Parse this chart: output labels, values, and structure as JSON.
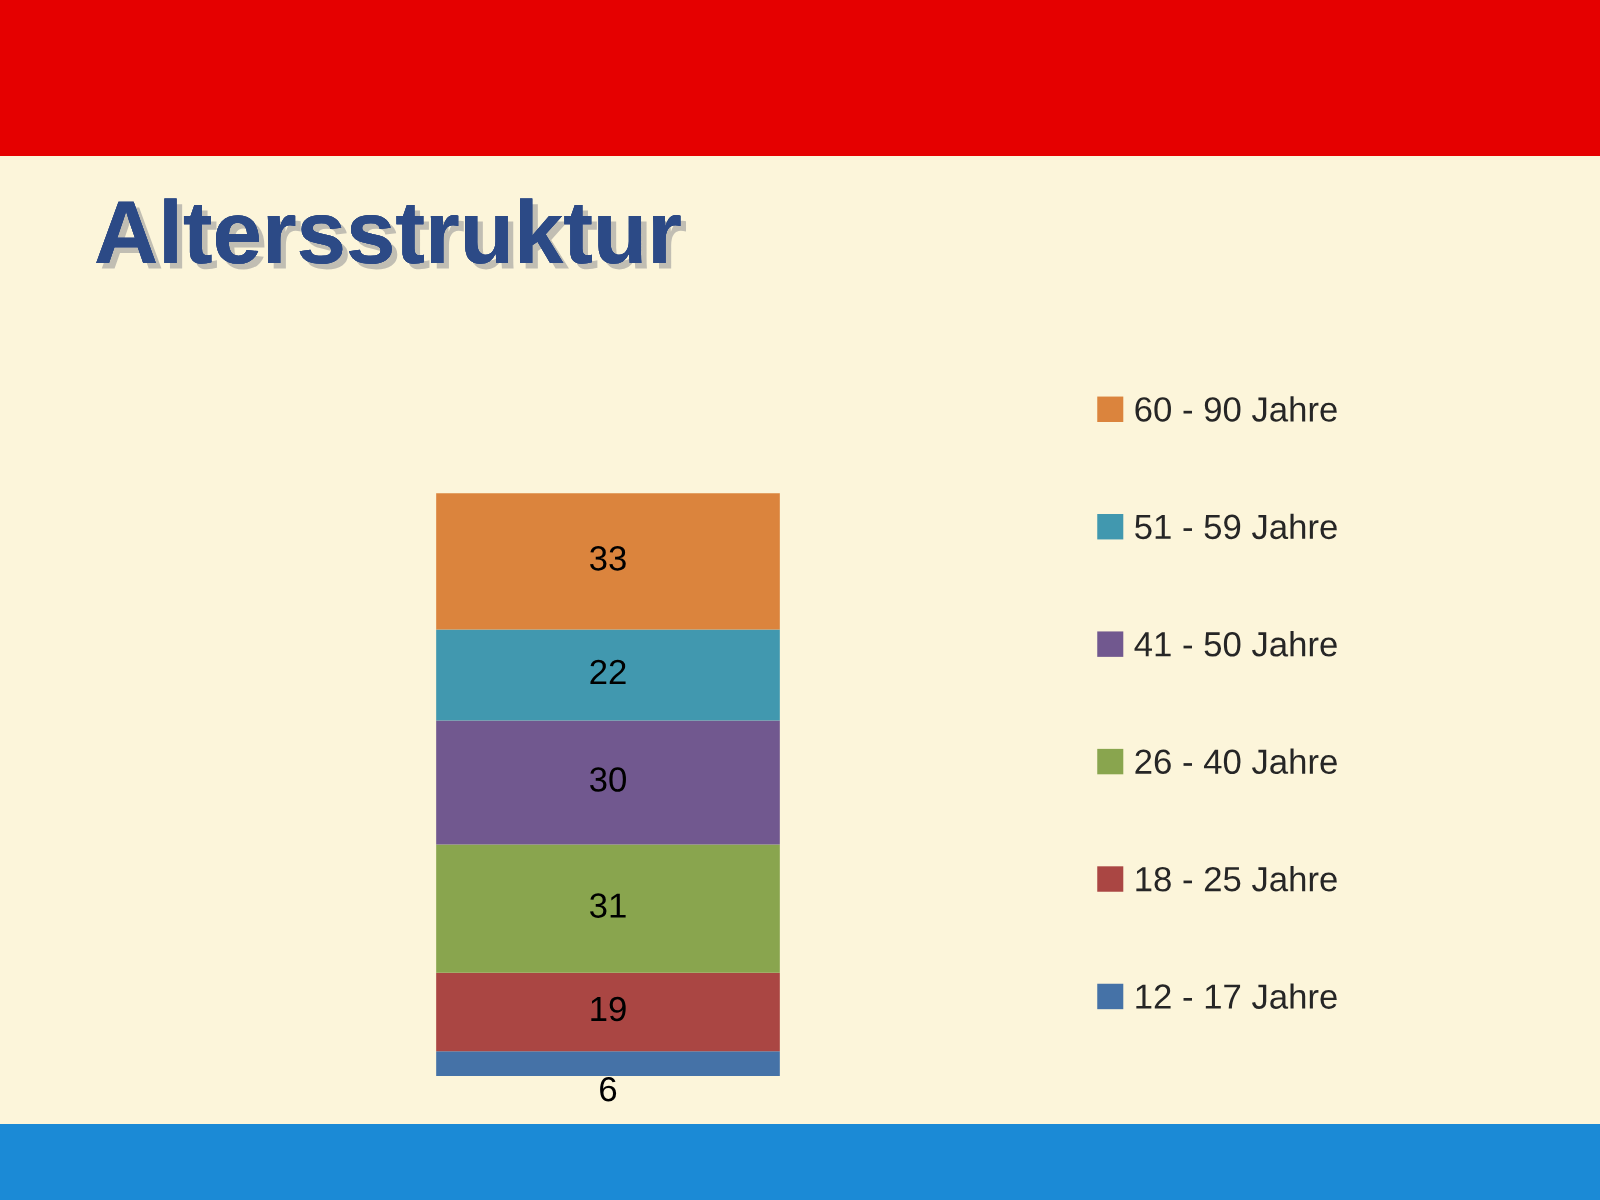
{
  "chart_data": {
    "type": "bar",
    "title": "Altersstruktur",
    "categories": [
      null
    ],
    "stacked": true,
    "data_labels": true,
    "legend": "right",
    "series": [
      {
        "name": "12 - 17 Jahre",
        "color": "#4572a7",
        "values": [
          6
        ]
      },
      {
        "name": "18 - 25 Jahre",
        "color": "#aa4643",
        "values": [
          19
        ]
      },
      {
        "name": "26 - 40 Jahre",
        "color": "#89a54e",
        "values": [
          31
        ]
      },
      {
        "name": "41 - 50 Jahre",
        "color": "#71588f",
        "values": [
          30
        ]
      },
      {
        "name": "51 - 59 Jahre",
        "color": "#4198af",
        "values": [
          22
        ]
      },
      {
        "name": "60 - 90 Jahre",
        "color": "#db843d",
        "values": [
          33
        ]
      }
    ]
  }
}
